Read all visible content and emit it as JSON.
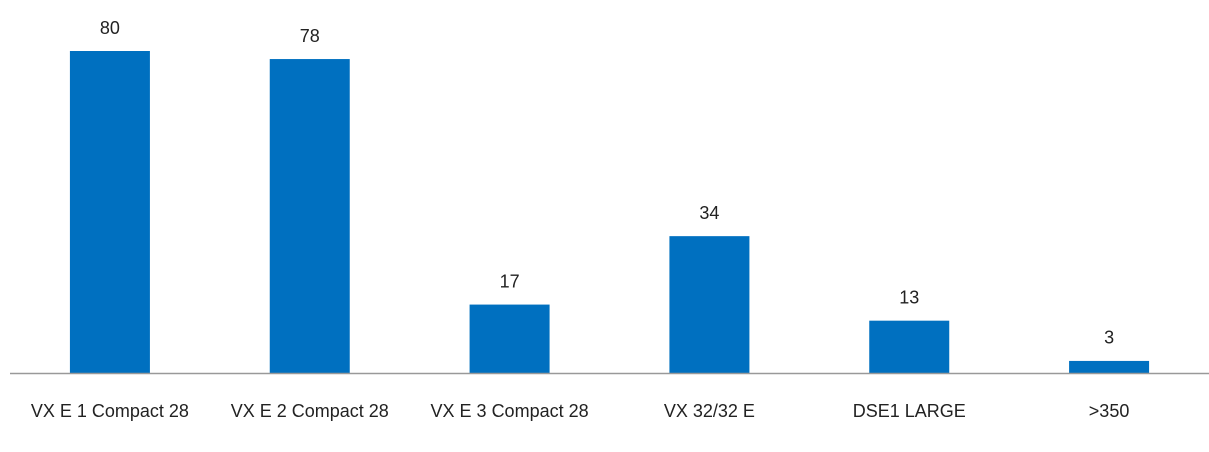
{
  "chart_data": {
    "type": "bar",
    "categories": [
      "VX E 1 Compact 28",
      "VX E 2 Compact 28",
      "VX E 3 Compact 28",
      "VX 32/32 E",
      "DSE1 LARGE",
      ">350"
    ],
    "values": [
      80,
      78,
      17,
      34,
      13,
      3
    ],
    "color": "#0070c0"
  }
}
